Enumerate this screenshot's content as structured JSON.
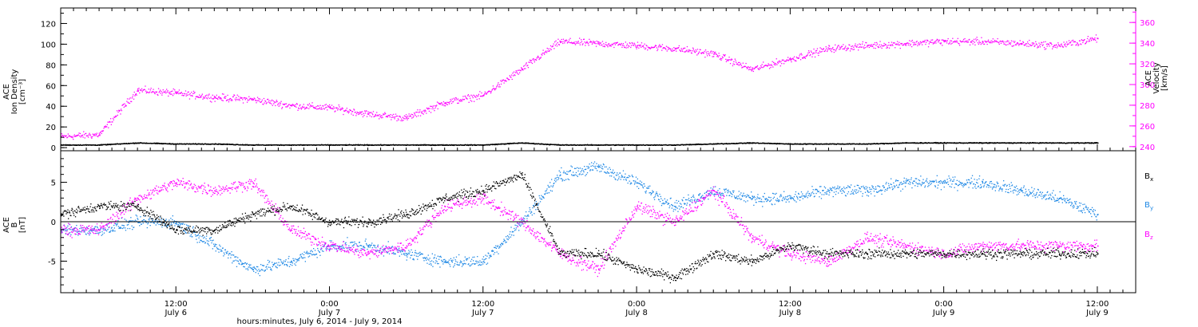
{
  "colors": {
    "black": "#000000",
    "magenta": "#ff00ff",
    "blue": "#1e88e5"
  },
  "xaxis": {
    "title": "hours:minutes, July  6, 2014 - July  9, 2014",
    "ticks": [
      {
        "hour": 12,
        "time": "12:00",
        "date": "July 6"
      },
      {
        "hour": 24,
        "time": "0:00",
        "date": "July 7"
      },
      {
        "hour": 36,
        "time": "12:00",
        "date": "July 7"
      },
      {
        "hour": 48,
        "time": "0:00",
        "date": "July 8"
      },
      {
        "hour": 60,
        "time": "12:00",
        "date": "July 8"
      },
      {
        "hour": 72,
        "time": "0:00",
        "date": "July 9"
      },
      {
        "hour": 84,
        "time": "12:00",
        "date": "July 9"
      }
    ]
  },
  "top_panel": {
    "left_label": [
      "ACE",
      "Ion Density",
      "[cm⁻³]"
    ],
    "right_label": [
      "ACE",
      "Velocity",
      "[km/s]"
    ],
    "left_ticks": [
      "0",
      "20",
      "40",
      "60",
      "80",
      "100",
      "120"
    ],
    "right_ticks": [
      "240",
      "260",
      "280",
      "300",
      "320",
      "340",
      "360"
    ]
  },
  "bottom_panel": {
    "left_label": [
      "ACE",
      "B",
      "[nT]"
    ],
    "left_ticks": [
      "-5",
      "0",
      "5"
    ],
    "legend": [
      {
        "label": "B",
        "sub": "x",
        "color": "#000000"
      },
      {
        "label": "B",
        "sub": "y",
        "color": "#1e88e5"
      },
      {
        "label": "B",
        "sub": "z",
        "color": "#ff00ff"
      }
    ]
  },
  "chart_data": [
    {
      "type": "scatter",
      "title": "",
      "xlabel": "hours:minutes, July  6, 2014 - July  9, 2014",
      "xlim_hours": [
        3,
        87
      ],
      "series": [
        {
          "name": "Ion Density",
          "axis": "left",
          "ylim": [
            -3,
            135
          ],
          "x_hours": [
            3,
            6,
            9,
            12,
            15,
            18,
            21,
            24,
            27,
            30,
            33,
            36,
            39,
            42,
            45,
            48,
            51,
            54,
            57,
            60,
            63,
            66,
            69,
            72,
            75,
            78,
            81,
            84
          ],
          "y": [
            3,
            3,
            5,
            4,
            4,
            3,
            3,
            3,
            3,
            3,
            3,
            3,
            5,
            3,
            3,
            3,
            3,
            4,
            5,
            4,
            4,
            4,
            5,
            5,
            5,
            5,
            5,
            5
          ]
        },
        {
          "name": "Velocity",
          "axis": "right",
          "ylim": [
            236,
            374
          ],
          "x_hours": [
            3,
            6,
            9,
            12,
            15,
            18,
            21,
            24,
            27,
            30,
            33,
            36,
            39,
            42,
            45,
            48,
            51,
            54,
            57,
            60,
            63,
            66,
            69,
            72,
            75,
            78,
            81,
            84
          ],
          "y": [
            250,
            252,
            295,
            292,
            288,
            286,
            280,
            278,
            272,
            268,
            283,
            290,
            315,
            342,
            340,
            338,
            335,
            330,
            315,
            325,
            335,
            338,
            340,
            342,
            342,
            340,
            338,
            345
          ]
        }
      ]
    },
    {
      "type": "scatter",
      "title": "",
      "ylim": [
        -9,
        9
      ],
      "xlim_hours": [
        3,
        87
      ],
      "series": [
        {
          "name": "Bx",
          "x_hours": [
            3,
            6,
            9,
            12,
            15,
            18,
            21,
            24,
            27,
            30,
            33,
            36,
            39,
            42,
            45,
            48,
            51,
            54,
            57,
            60,
            63,
            66,
            69,
            72,
            75,
            78,
            81,
            84
          ],
          "y": [
            1,
            2,
            2,
            -1,
            -1,
            1,
            2,
            0,
            0,
            1,
            3,
            4,
            6,
            -4,
            -4,
            -6,
            -7,
            -4,
            -5,
            -3,
            -4,
            -4,
            -4,
            -4,
            -4,
            -4,
            -4,
            -4
          ]
        },
        {
          "name": "By",
          "x_hours": [
            3,
            6,
            9,
            12,
            15,
            18,
            21,
            24,
            27,
            30,
            33,
            36,
            39,
            42,
            45,
            48,
            51,
            54,
            57,
            60,
            63,
            66,
            69,
            72,
            75,
            78,
            81,
            84
          ],
          "y": [
            -1,
            -1,
            0,
            0,
            -3,
            -6,
            -5,
            -3,
            -3,
            -4,
            -5,
            -5,
            0,
            6,
            7,
            5,
            2,
            4,
            3,
            3,
            4,
            4,
            5,
            5,
            5,
            4,
            3,
            1
          ]
        },
        {
          "name": "Bz",
          "x_hours": [
            3,
            6,
            9,
            12,
            15,
            18,
            21,
            24,
            27,
            30,
            33,
            36,
            39,
            42,
            45,
            48,
            51,
            54,
            57,
            60,
            63,
            66,
            69,
            72,
            75,
            78,
            81,
            84
          ],
          "y": [
            -1,
            -1,
            3,
            5,
            4,
            5,
            -1,
            -3,
            -4,
            -3,
            2,
            3,
            0,
            -4,
            -6,
            2,
            0,
            4,
            -2,
            -4,
            -5,
            -2,
            -3,
            -4,
            -3,
            -3,
            -3,
            -3
          ]
        }
      ]
    }
  ]
}
